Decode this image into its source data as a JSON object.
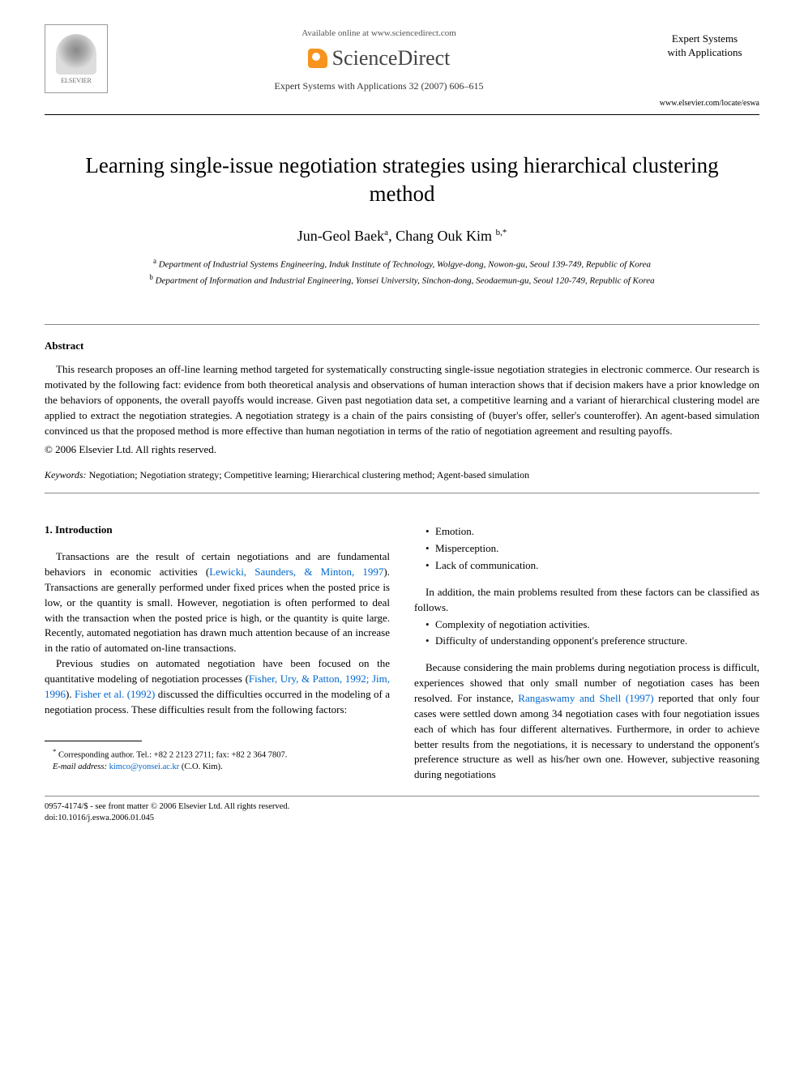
{
  "header": {
    "available_text": "Available online at www.sciencedirect.com",
    "sd_brand": "ScienceDirect",
    "journal_ref": "Expert Systems with Applications 32 (2007) 606–615",
    "elsevier_label": "ELSEVIER",
    "journal_title_line1": "Expert Systems",
    "journal_title_line2": "with Applications",
    "journal_url": "www.elsevier.com/locate/eswa"
  },
  "article": {
    "title": "Learning single-issue negotiation strategies using hierarchical clustering method",
    "authors_html": "Jun-Geol Baek ",
    "author1": "Jun-Geol Baek",
    "author1_sup": "a",
    "sep": ", ",
    "author2": "Chang Ouk Kim",
    "author2_sup": "b,*",
    "affil_a_sup": "a",
    "affil_a": " Department of Industrial Systems Engineering, Induk Institute of Technology, Wolgye-dong, Nowon-gu, Seoul 139-749, Republic of Korea",
    "affil_b_sup": "b",
    "affil_b": " Department of Information and Industrial Engineering, Yonsei University, Sinchon-dong, Seodaemun-gu, Seoul 120-749, Republic of Korea"
  },
  "abstract": {
    "heading": "Abstract",
    "text": "This research proposes an off-line learning method targeted for systematically constructing single-issue negotiation strategies in electronic commerce. Our research is motivated by the following fact: evidence from both theoretical analysis and observations of human interaction shows that if decision makers have a prior knowledge on the behaviors of opponents, the overall payoffs would increase. Given past negotiation data set, a competitive learning and a variant of hierarchical clustering model are applied to extract the negotiation strategies. A negotiation strategy is a chain of the pairs consisting of (buyer's offer, seller's counteroffer). An agent-based simulation convinced us that the proposed method is more effective than human negotiation in terms of the ratio of negotiation agreement and resulting payoffs.",
    "copyright": "© 2006 Elsevier Ltd. All rights reserved."
  },
  "keywords": {
    "label": "Keywords:",
    "text": " Negotiation; Negotiation strategy; Competitive learning; Hierarchical clustering method; Agent-based simulation"
  },
  "body": {
    "sec1_heading": "1. Introduction",
    "p1_a": "Transactions are the result of certain negotiations and are fundamental behaviors in economic activities (",
    "p1_ref": "Lewicki, Saunders, & Minton, 1997",
    "p1_b": "). Transactions are generally performed under fixed prices when the posted price is low, or the quantity is small. However, negotiation is often performed to deal with the transaction when the posted price is high, or the quantity is quite large. Recently, automated negotiation has drawn much attention because of an increase in the ratio of automated on-line transactions.",
    "p2_a": "Previous studies on automated negotiation have been focused on the quantitative modeling of negotiation processes (",
    "p2_ref1": "Fisher, Ury, & Patton, 1992; Jim, 1996",
    "p2_b": "). ",
    "p2_ref2": "Fisher et al. (1992)",
    "p2_c": " discussed the difficulties occurred in the modeling of a negotiation process. These difficulties result from the following factors:",
    "bullets1": [
      "Emotion.",
      "Misperception.",
      "Lack of communication."
    ],
    "p3": "In addition, the main problems resulted from these factors can be classified as follows.",
    "bullets2": [
      "Complexity of negotiation activities.",
      "Difficulty of understanding opponent's preference structure."
    ],
    "p4_a": "Because considering the main problems during negotiation process is difficult, experiences showed that only small number of negotiation cases has been resolved. For instance, ",
    "p4_ref": "Rangaswamy and Shell (1997)",
    "p4_b": " reported that only four cases were settled down among 34 negotiation cases with four negotiation issues each of which has four different alternatives. Furthermore, in order to achieve better results from the negotiations, it is necessary to understand the opponent's preference structure as well as his/her own one. However, subjective reasoning during negotiations"
  },
  "footnote": {
    "corresponding": "Corresponding author. Tel.: +82 2 2123 2711; fax: +82 2 364 7807.",
    "email_label": "E-mail address:",
    "email": "kimco@yonsei.ac.kr",
    "email_tail": " (C.O. Kim).",
    "star": "*"
  },
  "bottom": {
    "line1": "0957-4174/$ - see front matter © 2006 Elsevier Ltd. All rights reserved.",
    "line2": "doi:10.1016/j.eswa.2006.01.045"
  },
  "colors": {
    "link": "#0066cc",
    "text": "#000000",
    "rule": "#888888"
  }
}
